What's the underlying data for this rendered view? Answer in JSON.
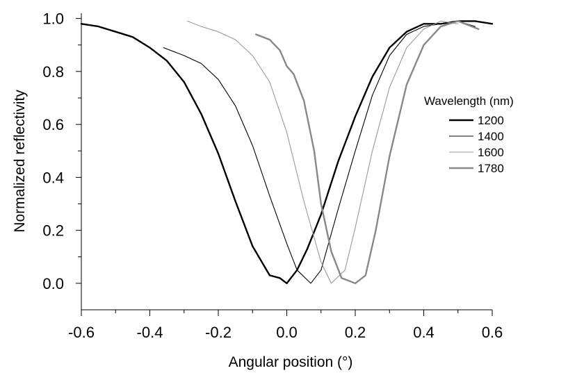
{
  "chart_data": {
    "type": "line",
    "title": "",
    "xlabel": "Angular position (°)",
    "ylabel": "Normalized reflectivity",
    "xlim": [
      -0.6,
      0.6
    ],
    "ylim": [
      -0.1,
      1.02
    ],
    "xticks": [
      -0.6,
      -0.4,
      -0.2,
      0.0,
      0.2,
      0.4,
      0.6
    ],
    "xtick_labels": [
      "-0.6",
      "-0.4",
      "-0.2",
      "0.0",
      "0.2",
      "0.4",
      "0.6"
    ],
    "yticks": [
      0.0,
      0.2,
      0.4,
      0.6,
      0.8,
      1.0
    ],
    "ytick_labels": [
      "0.0",
      "0.2",
      "0.4",
      "0.6",
      "0.8",
      "1.0"
    ],
    "grid": false,
    "legend": {
      "title": "Wavelength (nm)",
      "placement": "right"
    },
    "series": [
      {
        "name": "1200",
        "color": "#000000",
        "x": [
          -0.6,
          -0.55,
          -0.5,
          -0.45,
          -0.4,
          -0.35,
          -0.3,
          -0.25,
          -0.2,
          -0.15,
          -0.1,
          -0.05,
          -0.02,
          0.0,
          0.03,
          0.06,
          0.1,
          0.15,
          0.2,
          0.25,
          0.3,
          0.35,
          0.4,
          0.45,
          0.5,
          0.55,
          0.6
        ],
        "y": [
          0.98,
          0.97,
          0.95,
          0.93,
          0.89,
          0.84,
          0.76,
          0.64,
          0.49,
          0.31,
          0.14,
          0.03,
          0.02,
          0.0,
          0.05,
          0.13,
          0.26,
          0.46,
          0.63,
          0.78,
          0.89,
          0.95,
          0.98,
          0.98,
          0.99,
          0.99,
          0.98
        ]
      },
      {
        "name": "1400",
        "color": "#000000",
        "x": [
          -0.36,
          -0.3,
          -0.25,
          -0.2,
          -0.15,
          -0.1,
          -0.05,
          0.0,
          0.03,
          0.07,
          0.1,
          0.15,
          0.2,
          0.25,
          0.3,
          0.35,
          0.4,
          0.45,
          0.5,
          0.55
        ],
        "y": [
          0.89,
          0.86,
          0.83,
          0.77,
          0.67,
          0.52,
          0.33,
          0.15,
          0.05,
          0.0,
          0.05,
          0.28,
          0.5,
          0.71,
          0.86,
          0.94,
          0.97,
          0.98,
          0.99,
          0.97
        ]
      },
      {
        "name": "1600",
        "color": "#999999",
        "x": [
          -0.29,
          -0.25,
          -0.2,
          -0.15,
          -0.1,
          -0.05,
          0.0,
          0.05,
          0.1,
          0.13,
          0.17,
          0.2,
          0.25,
          0.3,
          0.35,
          0.4,
          0.45,
          0.5
        ],
        "y": [
          0.99,
          0.97,
          0.95,
          0.92,
          0.86,
          0.76,
          0.57,
          0.31,
          0.08,
          0.0,
          0.05,
          0.21,
          0.5,
          0.74,
          0.89,
          0.96,
          0.99,
          0.98
        ]
      },
      {
        "name": "1780",
        "color": "#888888",
        "x": [
          -0.09,
          -0.05,
          -0.02,
          0.0,
          0.02,
          0.05,
          0.08,
          0.1,
          0.13,
          0.16,
          0.2,
          0.23,
          0.26,
          0.3,
          0.35,
          0.4,
          0.45,
          0.5,
          0.56
        ],
        "y": [
          0.94,
          0.92,
          0.88,
          0.82,
          0.79,
          0.69,
          0.5,
          0.3,
          0.12,
          0.02,
          0.0,
          0.03,
          0.2,
          0.48,
          0.75,
          0.9,
          0.97,
          0.99,
          0.96
        ]
      }
    ]
  }
}
